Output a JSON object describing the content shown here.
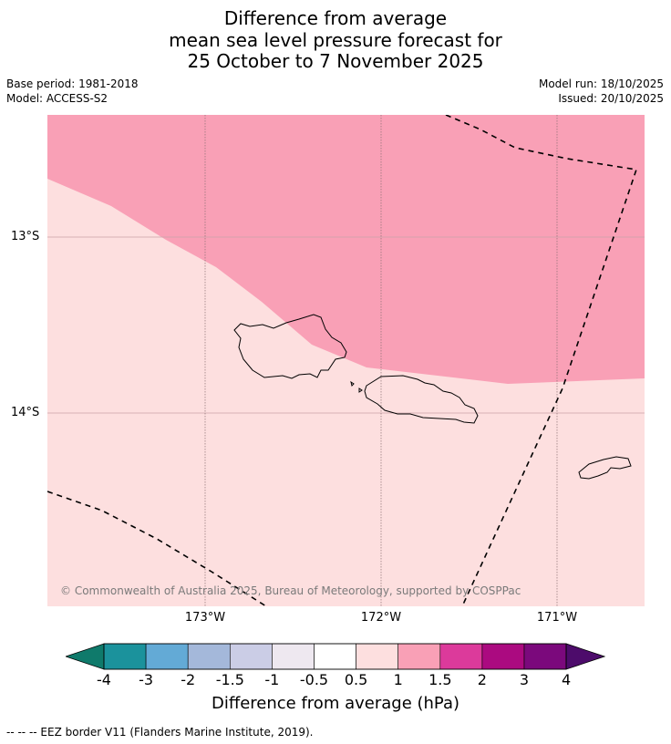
{
  "header": {
    "title_line1": "Difference from average",
    "title_line2": "mean sea level pressure forecast for",
    "title_line3": "25 October to 7 November 2025",
    "base_period": "Base period: 1981-2018",
    "model": "Model: ACCESS-S2",
    "model_run": "Model run: 18/10/2025",
    "issued": "Issued: 20/10/2025"
  },
  "map": {
    "lat_labels": [
      "13°S",
      "14°S"
    ],
    "lon_labels": [
      "173°W",
      "172°W",
      "171°W"
    ],
    "copyright": "© Commonwealth of Australia 2025, Bureau of Meteorology, supported by COSPPac",
    "fill_colors": {
      "pink": "#f9a0b6",
      "light_pink": "#fddfdf"
    },
    "features": [
      "Savai'i",
      "Upolu",
      "Tutuila",
      "EEZ border"
    ]
  },
  "colorbar": {
    "ticks": [
      "-4",
      "-3",
      "-2",
      "-1.5",
      "-1",
      "-0.5",
      "0.5",
      "1",
      "1.5",
      "2",
      "3",
      "4"
    ],
    "colors": [
      "#0f7a6b",
      "#1b929c",
      "#63aad6",
      "#a4b8da",
      "#cbcde6",
      "#eee8f0",
      "#ffffff",
      "#fddfdf",
      "#f9a0b6",
      "#dc3a9b",
      "#ab0a80",
      "#7b097c",
      "#4d0c6b"
    ],
    "label": "Difference from average (hPa)"
  },
  "footer": {
    "legend": "--  --  -- EEZ border V11 (Flanders Marine Institute, 2019)."
  }
}
